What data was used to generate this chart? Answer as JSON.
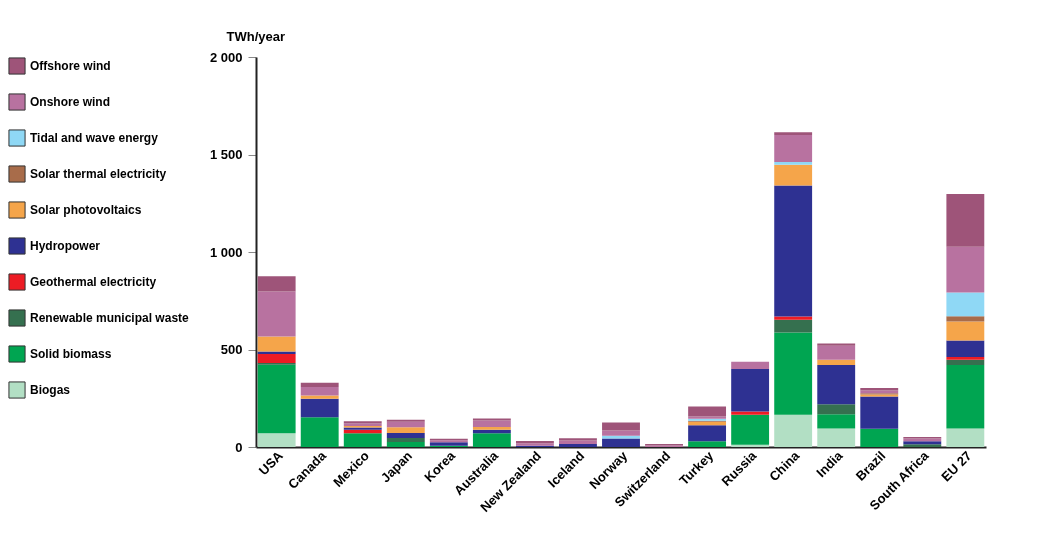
{
  "chart_data": {
    "type": "bar",
    "stacked": true,
    "ylabel": "TWh/year",
    "categories": [
      "USA",
      "Canada",
      "Mexico",
      "Japan",
      "Korea",
      "Australia",
      "New Zealand",
      "Iceland",
      "Norway",
      "Switzerland",
      "Turkey",
      "Russia",
      "China",
      "India",
      "Brazil",
      "South Africa",
      "EU 27"
    ],
    "ylim": [
      0,
      2000
    ],
    "yticks": [
      0,
      500,
      {
        "value": 1000,
        "label": "1 000"
      },
      {
        "value": 1500,
        "label": "1 500"
      },
      {
        "value": 2000,
        "label": "2 000"
      }
    ],
    "legend": "left",
    "grid": false,
    "series": [
      {
        "name": "Biogas",
        "color": "#b2dfc4",
        "values": [
          70,
          0,
          0,
          0,
          0,
          0,
          0,
          0,
          0,
          0,
          0,
          12,
          165,
          95,
          0,
          0,
          95
        ]
      },
      {
        "name": "Solid biomass",
        "color": "#00a551",
        "values": [
          352,
          152,
          71,
          26,
          7,
          71,
          0,
          0,
          0,
          0,
          29,
          153,
          422,
          73,
          94,
          0,
          326
        ]
      },
      {
        "name": "Renewable municipal waste",
        "color": "#35704f",
        "values": [
          9,
          0,
          0,
          20,
          0,
          0,
          0,
          0,
          0,
          0,
          0,
          0,
          65,
          51,
          0,
          14,
          26
        ]
      },
      {
        "name": "Geothermal electricity",
        "color": "#ed1c24",
        "values": [
          46,
          0,
          17,
          0,
          0,
          0,
          0,
          0,
          0,
          0,
          0,
          17,
          17,
          0,
          0,
          0,
          14
        ]
      },
      {
        "name": "Hydropower",
        "color": "#2e3192",
        "values": [
          13,
          95,
          12,
          26,
          17,
          17,
          7,
          15,
          44,
          0,
          82,
          218,
          672,
          202,
          165,
          15,
          85
        ]
      },
      {
        "name": "Solar photovoltaics",
        "color": "#f5a54a",
        "values": [
          77,
          17,
          8,
          29,
          0,
          14,
          0,
          0,
          0,
          0,
          19,
          0,
          106,
          27,
          10,
          0,
          97
        ]
      },
      {
        "name": "Solar thermal electricity",
        "color": "#a86c4a",
        "values": [
          0,
          0,
          0,
          0,
          0,
          0,
          0,
          0,
          0,
          0,
          5,
          0,
          0,
          0,
          7,
          0,
          27
        ]
      },
      {
        "name": "Tidal and wave energy",
        "color": "#8fd8f5",
        "values": [
          0,
          0,
          0,
          0,
          0,
          0,
          0,
          0,
          14,
          0,
          10,
          0,
          14,
          0,
          0,
          0,
          122
        ]
      },
      {
        "name": "Onshore wind",
        "color": "#b872a0",
        "values": [
          230,
          44,
          12,
          29,
          10,
          34,
          12,
          18,
          27,
          8,
          12,
          37,
          139,
          71,
          14,
          14,
          235
        ]
      },
      {
        "name": "Offshore wind",
        "color": "#9e5479",
        "values": [
          79,
          22,
          12,
          10,
          8,
          10,
          12,
          12,
          41,
          7,
          51,
          0,
          14,
          12,
          12,
          8,
          270
        ]
      }
    ]
  }
}
